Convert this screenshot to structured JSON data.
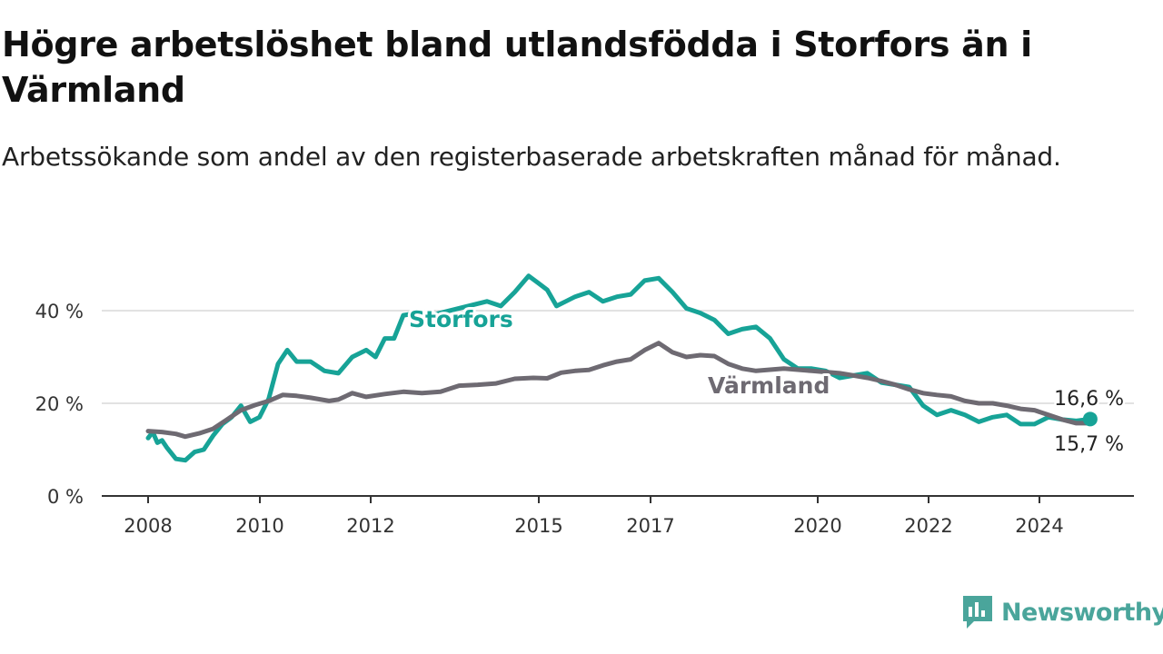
{
  "title": "Högre arbetslöshet bland utlandsfödda i Storfors än i Värmland",
  "subtitle": "Arbetssökande som andel av den registerbaserade arbetskraften månad för månad.",
  "brand": {
    "name": "Newsworthy",
    "color": "#4aa59b",
    "icon": "bar-chart-speech-icon"
  },
  "chart_data": {
    "type": "line",
    "x_axis": {
      "min": "2008-01",
      "max": "2025-01",
      "ticks": [
        "2008",
        "2010",
        "2012",
        "2015",
        "2017",
        "2020",
        "2022",
        "2024"
      ]
    },
    "y_axis": {
      "min": 0,
      "max": 50,
      "ticks": [
        "0 %",
        "20 %",
        "40 %"
      ],
      "tick_values": [
        0,
        20,
        40
      ],
      "grid": true
    },
    "series": [
      {
        "name": "Värmland",
        "color": "#6e6a72",
        "end_label": "15,7 %",
        "points": [
          [
            "2008-01",
            14.0
          ],
          [
            "2008-04",
            13.8
          ],
          [
            "2008-07",
            13.4
          ],
          [
            "2008-09",
            12.8
          ],
          [
            "2008-12",
            13.5
          ],
          [
            "2009-03",
            14.5
          ],
          [
            "2009-06",
            16.5
          ],
          [
            "2009-09",
            18.5
          ],
          [
            "2009-12",
            19.6
          ],
          [
            "2010-03",
            20.5
          ],
          [
            "2010-06",
            21.8
          ],
          [
            "2010-09",
            21.6
          ],
          [
            "2010-12",
            21.2
          ],
          [
            "2011-04",
            20.5
          ],
          [
            "2011-06",
            20.8
          ],
          [
            "2011-09",
            22.2
          ],
          [
            "2011-12",
            21.4
          ],
          [
            "2012-04",
            22.0
          ],
          [
            "2012-08",
            22.5
          ],
          [
            "2012-12",
            22.2
          ],
          [
            "2013-04",
            22.5
          ],
          [
            "2013-08",
            23.8
          ],
          [
            "2013-12",
            24.0
          ],
          [
            "2014-04",
            24.3
          ],
          [
            "2014-08",
            25.3
          ],
          [
            "2014-12",
            25.5
          ],
          [
            "2015-03",
            25.4
          ],
          [
            "2015-06",
            26.6
          ],
          [
            "2015-09",
            27.0
          ],
          [
            "2015-12",
            27.2
          ],
          [
            "2016-03",
            28.2
          ],
          [
            "2016-06",
            29.0
          ],
          [
            "2016-09",
            29.5
          ],
          [
            "2016-12",
            31.5
          ],
          [
            "2017-03",
            33.0
          ],
          [
            "2017-06",
            31.0
          ],
          [
            "2017-09",
            30.0
          ],
          [
            "2017-12",
            30.4
          ],
          [
            "2018-03",
            30.2
          ],
          [
            "2018-06",
            28.5
          ],
          [
            "2018-09",
            27.5
          ],
          [
            "2018-12",
            27.0
          ],
          [
            "2019-06",
            27.5
          ],
          [
            "2019-12",
            27.0
          ],
          [
            "2020-06",
            26.5
          ],
          [
            "2020-09",
            26.0
          ],
          [
            "2020-12",
            25.5
          ],
          [
            "2021-03",
            24.8
          ],
          [
            "2021-06",
            24.0
          ],
          [
            "2021-09",
            23.0
          ],
          [
            "2021-12",
            22.2
          ],
          [
            "2022-03",
            21.8
          ],
          [
            "2022-06",
            21.5
          ],
          [
            "2022-09",
            20.5
          ],
          [
            "2022-12",
            20.0
          ],
          [
            "2023-03",
            20.0
          ],
          [
            "2023-06",
            19.5
          ],
          [
            "2023-09",
            18.8
          ],
          [
            "2023-12",
            18.5
          ],
          [
            "2024-03",
            17.5
          ],
          [
            "2024-06",
            16.5
          ],
          [
            "2024-09",
            15.7
          ],
          [
            "2024-12",
            15.7
          ]
        ]
      },
      {
        "name": "Storfors",
        "color": "#17a397",
        "end_label": "16,6 %",
        "points": [
          [
            "2008-01",
            12.5
          ],
          [
            "2008-02",
            13.8
          ],
          [
            "2008-03",
            11.5
          ],
          [
            "2008-04",
            12.0
          ],
          [
            "2008-05",
            10.5
          ],
          [
            "2008-07",
            8.0
          ],
          [
            "2008-09",
            7.7
          ],
          [
            "2008-11",
            9.5
          ],
          [
            "2009-01",
            10.0
          ],
          [
            "2009-03",
            13.0
          ],
          [
            "2009-05",
            15.5
          ],
          [
            "2009-07",
            17.0
          ],
          [
            "2009-09",
            19.5
          ],
          [
            "2009-11",
            16.0
          ],
          [
            "2010-01",
            17.0
          ],
          [
            "2010-03",
            21.0
          ],
          [
            "2010-05",
            28.5
          ],
          [
            "2010-07",
            31.5
          ],
          [
            "2010-09",
            29.0
          ],
          [
            "2010-12",
            29.0
          ],
          [
            "2011-03",
            27.0
          ],
          [
            "2011-06",
            26.5
          ],
          [
            "2011-09",
            30.0
          ],
          [
            "2011-12",
            31.5
          ],
          [
            "2012-02",
            30.0
          ],
          [
            "2012-04",
            34.0
          ],
          [
            "2012-06",
            34.0
          ],
          [
            "2012-08",
            39.0
          ],
          [
            "2012-11",
            39.5
          ],
          [
            "2013-02",
            39.0
          ],
          [
            "2014-02",
            42.0
          ],
          [
            "2014-05",
            41.0
          ],
          [
            "2014-08",
            44.0
          ],
          [
            "2014-11",
            47.5
          ],
          [
            "2015-01",
            46.0
          ],
          [
            "2015-03",
            44.5
          ],
          [
            "2015-05",
            41.0
          ],
          [
            "2015-07",
            42.0
          ],
          [
            "2015-09",
            43.0
          ],
          [
            "2015-12",
            44.0
          ],
          [
            "2016-03",
            42.0
          ],
          [
            "2016-06",
            43.0
          ],
          [
            "2016-09",
            43.5
          ],
          [
            "2016-12",
            46.5
          ],
          [
            "2017-03",
            47.0
          ],
          [
            "2017-06",
            44.0
          ],
          [
            "2017-09",
            40.5
          ],
          [
            "2017-12",
            39.5
          ],
          [
            "2018-03",
            38.0
          ],
          [
            "2018-06",
            35.0
          ],
          [
            "2018-09",
            36.0
          ],
          [
            "2018-12",
            36.5
          ],
          [
            "2019-03",
            34.0
          ],
          [
            "2019-06",
            29.5
          ],
          [
            "2019-09",
            27.5
          ],
          [
            "2019-12",
            27.5
          ],
          [
            "2020-03",
            27.0
          ],
          [
            "2020-06",
            25.5
          ],
          [
            "2020-09",
            26.0
          ],
          [
            "2020-12",
            26.5
          ],
          [
            "2021-03",
            24.5
          ],
          [
            "2021-06",
            24.0
          ],
          [
            "2021-09",
            23.5
          ],
          [
            "2021-12",
            19.5
          ],
          [
            "2022-03",
            17.5
          ],
          [
            "2022-06",
            18.5
          ],
          [
            "2022-09",
            17.5
          ],
          [
            "2022-12",
            16.0
          ],
          [
            "2023-03",
            17.0
          ],
          [
            "2023-06",
            17.5
          ],
          [
            "2023-09",
            15.5
          ],
          [
            "2023-12",
            15.5
          ],
          [
            "2024-03",
            17.0
          ],
          [
            "2024-06",
            16.5
          ],
          [
            "2024-09",
            16.2
          ],
          [
            "2024-12",
            16.6
          ]
        ]
      }
    ]
  }
}
